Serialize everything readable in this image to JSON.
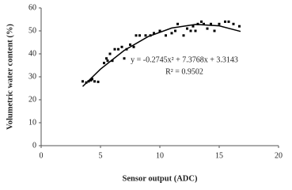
{
  "chart_data": {
    "type": "scatter",
    "x_label": "Sensor output (ADC)",
    "y_label": "Volumetric water content (%)",
    "xlim": [
      0,
      20
    ],
    "xticks": [
      0,
      5,
      10,
      15,
      20
    ],
    "ylim": [
      0,
      60
    ],
    "yticks": [
      0,
      10,
      20,
      30,
      40,
      50,
      60
    ],
    "grid": false,
    "series": [
      {
        "color": "#000000",
        "x": [
          3.5,
          3.8,
          4.0,
          4.2,
          4.3,
          4.5,
          4.8,
          5.3,
          5.5,
          5.6,
          5.8,
          6.0,
          6.2,
          6.5,
          6.8,
          7.0,
          7.2,
          7.5,
          7.8,
          8.0,
          8.3,
          8.8,
          9.2,
          9.5,
          10.0,
          10.5,
          11.0,
          11.3,
          11.5,
          12.0,
          12.3,
          12.6,
          12.8,
          13.0,
          13.2,
          13.5,
          13.7,
          14.0,
          14.3,
          14.6,
          15.0,
          15.5,
          15.8,
          16.2,
          16.7
        ],
        "values": [
          28,
          27.5,
          28,
          28.5,
          29,
          28,
          27.8,
          36,
          38,
          37,
          40,
          37,
          42,
          42,
          43,
          38,
          42,
          44,
          43,
          48,
          48,
          48,
          48,
          49,
          50,
          48,
          49,
          50,
          53,
          48,
          51,
          50,
          52,
          50,
          53,
          54,
          53,
          51,
          53,
          50,
          53,
          54,
          54,
          53,
          52
        ]
      }
    ],
    "trend": {
      "color": "#000000",
      "x": [
        3.5,
        5,
        7,
        9,
        11,
        13,
        15,
        16.8
      ],
      "values": [
        25.77,
        33.34,
        41.5,
        47.47,
        51.24,
        52.82,
        52.2,
        49.77
      ]
    },
    "annotations": [
      "y = -0.2745x² + 7.3768x + 3.3143",
      "R² = 0.9502"
    ]
  }
}
